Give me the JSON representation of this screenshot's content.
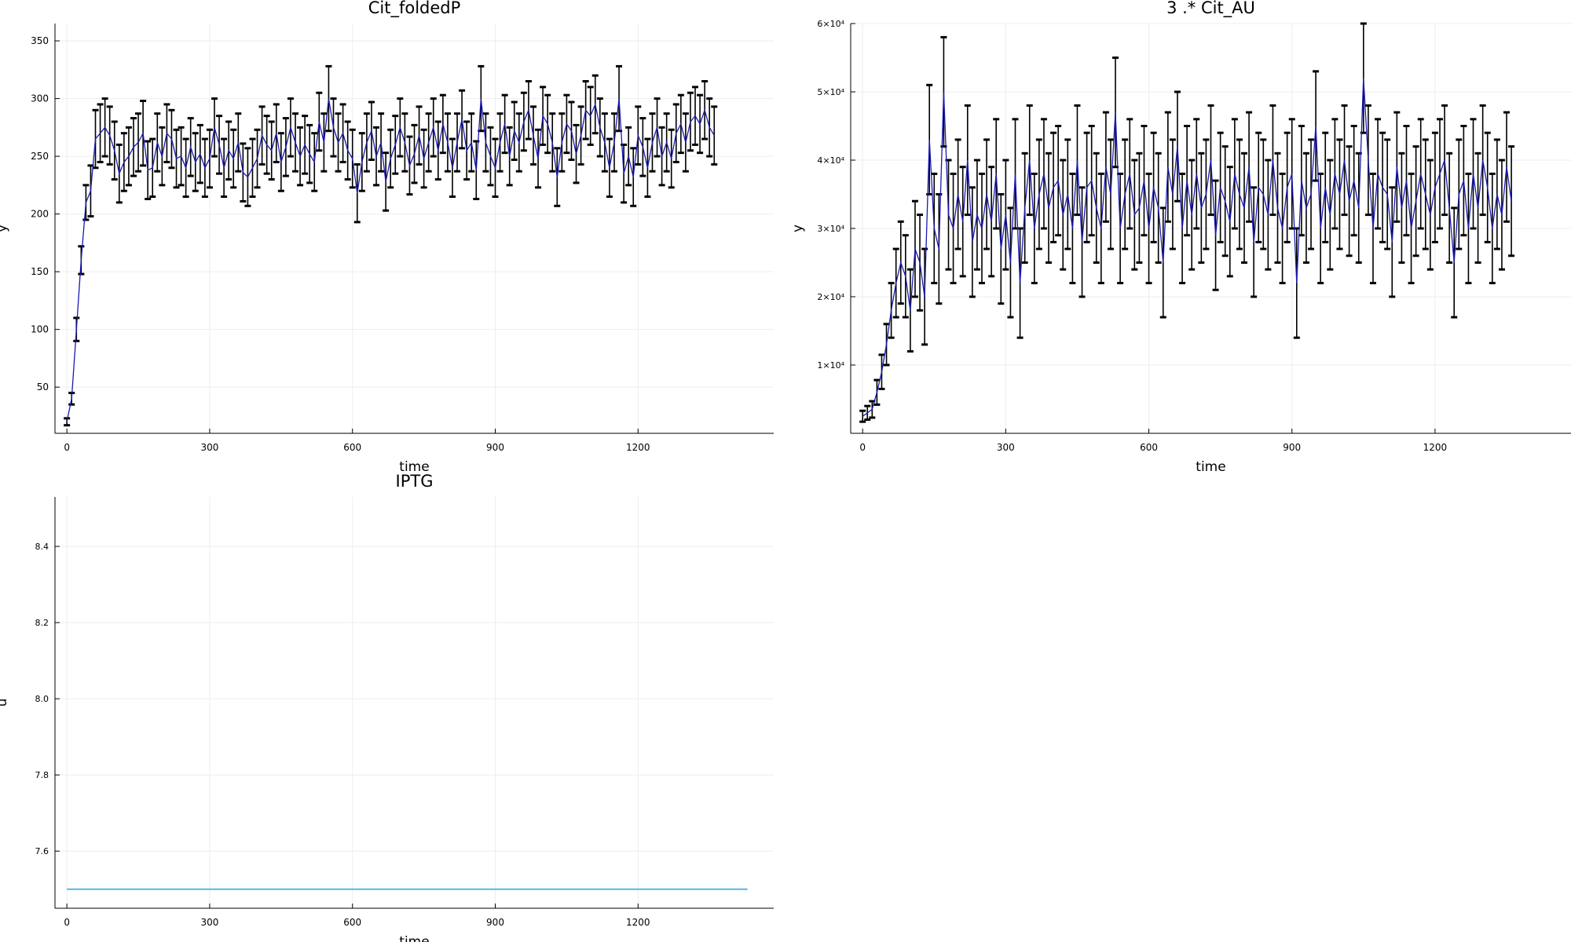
{
  "chart_data": [
    {
      "type": "line",
      "title": "Cit_foldedP",
      "xlabel": "time",
      "ylabel": "y",
      "xlim": [
        -25,
        1485
      ],
      "ylim": [
        10,
        365
      ],
      "xticks": [
        0,
        300,
        600,
        900,
        1200
      ],
      "yticks": [
        50,
        100,
        150,
        200,
        250,
        300,
        350
      ],
      "grid": true,
      "error_bars": true,
      "series": [
        {
          "values_mean": [
            20,
            40,
            100,
            160,
            210,
            220,
            265,
            270,
            275,
            268,
            255,
            235,
            245,
            250,
            258,
            262,
            270,
            238,
            240,
            262,
            250,
            270,
            265,
            248,
            250,
            240,
            258,
            245,
            252,
            240,
            248,
            275,
            260,
            240,
            255,
            248,
            262,
            236,
            232,
            240,
            248,
            268,
            260,
            255,
            270,
            245,
            258,
            275,
            262,
            250,
            260,
            252,
            245,
            280,
            262,
            300,
            275,
            262,
            270,
            255,
            248,
            218,
            245,
            262,
            272,
            250,
            262,
            228,
            248,
            260,
            275,
            262,
            242,
            252,
            268,
            248,
            262,
            275,
            255,
            278,
            262,
            240,
            262,
            282,
            255,
            262,
            238,
            300,
            262,
            250,
            240,
            262,
            278,
            250,
            272,
            262,
            280,
            290,
            268,
            248,
            285,
            278,
            262,
            232,
            262,
            278,
            272,
            252,
            268,
            290,
            285,
            295,
            275,
            262,
            240,
            262,
            300,
            235,
            250,
            232,
            268,
            258,
            240,
            262,
            275,
            250,
            262,
            248,
            270,
            278,
            262,
            280,
            285,
            278,
            290,
            275,
            268
          ],
          "err": [
            3,
            5,
            10,
            12,
            15,
            22,
            25,
            25,
            25,
            25,
            25,
            25,
            25,
            25,
            25,
            25,
            28,
            25,
            25,
            25,
            25,
            25,
            25,
            25,
            25,
            25,
            25,
            25,
            25,
            25,
            25,
            25,
            25,
            25,
            25,
            25,
            25,
            25,
            25,
            25,
            25,
            25,
            25,
            25,
            25,
            25,
            25,
            25,
            25,
            25,
            25,
            25,
            25,
            25,
            25,
            28,
            25,
            25,
            25,
            25,
            25,
            25,
            25,
            25,
            25,
            25,
            25,
            25,
            25,
            25,
            25,
            25,
            25,
            25,
            25,
            25,
            25,
            25,
            25,
            25,
            25,
            25,
            25,
            25,
            25,
            25,
            25,
            28,
            25,
            25,
            25,
            25,
            25,
            25,
            25,
            25,
            25,
            25,
            25,
            25,
            25,
            25,
            25,
            25,
            25,
            25,
            25,
            25,
            25,
            25,
            25,
            25,
            25,
            25,
            25,
            25,
            28,
            25,
            25,
            25,
            25,
            25,
            25,
            25,
            25,
            25,
            25,
            25,
            25,
            25,
            25,
            25,
            25,
            25,
            25,
            25,
            25
          ],
          "x_start": 0,
          "x_step": 10
        }
      ]
    },
    {
      "type": "line",
      "title": "3 .* Cit_AU",
      "xlabel": "time",
      "ylabel": "y",
      "xlim": [
        -25,
        1485
      ],
      "ylim": [
        0,
        60000
      ],
      "xticks": [
        0,
        300,
        600,
        900,
        1200
      ],
      "yticks": [
        10000,
        20000,
        30000,
        40000,
        50000,
        60000
      ],
      "ytick_labels": [
        "1×10⁴",
        "2×10⁴",
        "3×10⁴",
        "4×10⁴",
        "5×10⁴",
        "6×10⁴"
      ],
      "grid": true,
      "error_bars": true,
      "series": [
        {
          "values_mean": [
            2500,
            3000,
            3500,
            6000,
            9000,
            13000,
            18000,
            22000,
            25000,
            23000,
            18000,
            27000,
            25000,
            20000,
            43000,
            30000,
            27000,
            50000,
            32000,
            30000,
            35000,
            31000,
            40000,
            28000,
            32000,
            30000,
            35000,
            31000,
            38000,
            27000,
            32000,
            25000,
            38000,
            22000,
            33000,
            40000,
            30000,
            35000,
            38000,
            33000,
            36000,
            37000,
            32000,
            35000,
            30000,
            40000,
            28000,
            36000,
            37000,
            33000,
            30000,
            39000,
            35000,
            47000,
            30000,
            35000,
            38000,
            32000,
            33000,
            37000,
            30000,
            36000,
            33000,
            25000,
            39000,
            35000,
            42000,
            30000,
            37000,
            32000,
            38000,
            33000,
            35000,
            40000,
            29000,
            36000,
            34000,
            31000,
            38000,
            35000,
            33000,
            39000,
            28000,
            36000,
            35000,
            32000,
            40000,
            33000,
            30000,
            36000,
            38000,
            22000,
            37000,
            33000,
            35000,
            45000,
            30000,
            36000,
            32000,
            38000,
            35000,
            40000,
            34000,
            37000,
            33000,
            52000,
            40000,
            30000,
            38000,
            36000,
            35000,
            28000,
            39000,
            33000,
            37000,
            30000,
            34000,
            38000,
            35000,
            32000,
            36000,
            38000,
            40000,
            33000,
            25000,
            35000,
            37000,
            30000,
            38000,
            33000,
            40000,
            36000,
            30000,
            35000,
            32000,
            39000,
            34000
          ],
          "err": [
            800,
            1000,
            1200,
            1800,
            2500,
            3000,
            4000,
            5000,
            6000,
            6000,
            6000,
            7000,
            7000,
            7000,
            8000,
            8000,
            8000,
            8000,
            8000,
            8000,
            8000,
            8000,
            8000,
            8000,
            8000,
            8000,
            8000,
            8000,
            8000,
            8000,
            8000,
            8000,
            8000,
            8000,
            8000,
            8000,
            8000,
            8000,
            8000,
            8000,
            8000,
            8000,
            8000,
            8000,
            8000,
            8000,
            8000,
            8000,
            8000,
            8000,
            8000,
            8000,
            8000,
            8000,
            8000,
            8000,
            8000,
            8000,
            8000,
            8000,
            8000,
            8000,
            8000,
            8000,
            8000,
            8000,
            8000,
            8000,
            8000,
            8000,
            8000,
            8000,
            8000,
            8000,
            8000,
            8000,
            8000,
            8000,
            8000,
            8000,
            8000,
            8000,
            8000,
            8000,
            8000,
            8000,
            8000,
            8000,
            8000,
            8000,
            8000,
            8000,
            8000,
            8000,
            8000,
            8000,
            8000,
            8000,
            8000,
            8000,
            8000,
            8000,
            8000,
            8000,
            8000,
            8000,
            8000,
            8000,
            8000,
            8000,
            8000,
            8000,
            8000,
            8000,
            8000,
            8000,
            8000,
            8000,
            8000,
            8000,
            8000,
            8000,
            8000,
            8000,
            8000,
            8000,
            8000,
            8000,
            8000,
            8000,
            8000,
            8000,
            8000,
            8000,
            8000,
            8000,
            8000
          ],
          "x_start": 0,
          "x_step": 10
        }
      ]
    },
    {
      "type": "line",
      "title": "IPTG",
      "xlabel": "time",
      "ylabel": "u",
      "xlim": [
        -25,
        1485
      ],
      "ylim": [
        7.45,
        8.53
      ],
      "xticks": [
        0,
        300,
        600,
        900,
        1200
      ],
      "yticks": [
        7.6,
        7.8,
        8.0,
        8.2,
        8.4
      ],
      "ytick_labels": [
        "7.6",
        "7.8",
        "8.0",
        "8.2",
        "8.4"
      ],
      "grid": true,
      "error_bars": false,
      "series": [
        {
          "x": [
            0,
            1430
          ],
          "values": [
            7.5,
            7.5
          ]
        }
      ]
    }
  ]
}
